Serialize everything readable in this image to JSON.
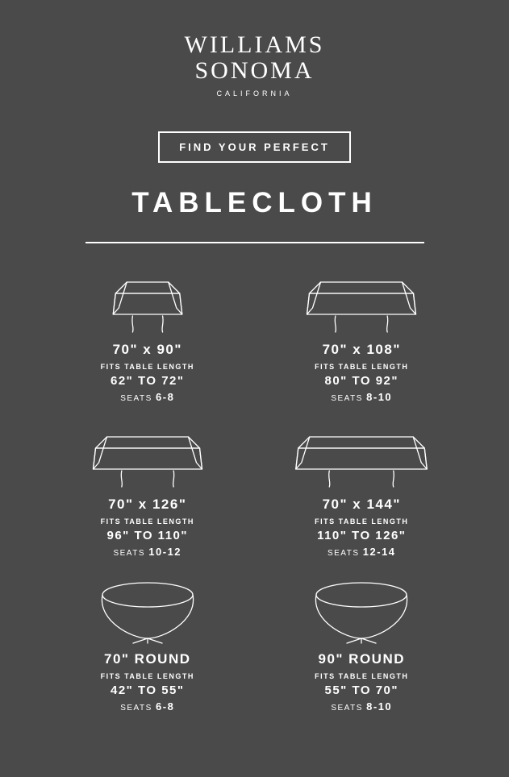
{
  "brand": {
    "line1": "WILLIAMS",
    "line2": "SONOMA",
    "sub": "CALIFORNIA"
  },
  "header": {
    "boxed": "FIND YOUR PERFECT",
    "title": "TABLECLOTH"
  },
  "labels": {
    "fits": "FITS TABLE LENGTH",
    "seats": "SEATS"
  },
  "styling": {
    "background_color": "#4a4a4a",
    "stroke_color": "#ffffff",
    "text_color": "#ffffff",
    "stroke_width": 1.3,
    "brand_fontsize": 30,
    "brand_sub_fontsize": 9,
    "boxed_fontsize": 13,
    "title_fontsize": 35,
    "size_fontsize": 17,
    "fits_label_fontsize": 9,
    "fits_range_fontsize": 15,
    "seats_fontsize": 10,
    "divider_width": 420
  },
  "items": [
    {
      "shape": "rect-short",
      "size": "70\" x 90\"",
      "range": "62\" TO 72\"",
      "seats": "6-8"
    },
    {
      "shape": "rect-long",
      "size": "70\" x 108\"",
      "range": "80\" TO 92\"",
      "seats": "8-10"
    },
    {
      "shape": "rect-long",
      "size": "70\" x 126\"",
      "range": "96\" TO 110\"",
      "seats": "10-12"
    },
    {
      "shape": "rect-longer",
      "size": "70\" x 144\"",
      "range": "110\" TO 126\"",
      "seats": "12-14"
    },
    {
      "shape": "round",
      "size": "70\" ROUND",
      "range": "42\" TO 55\"",
      "seats": "6-8"
    },
    {
      "shape": "round",
      "size": "90\" ROUND",
      "range": "55\" TO 70\"",
      "seats": "8-10"
    }
  ]
}
